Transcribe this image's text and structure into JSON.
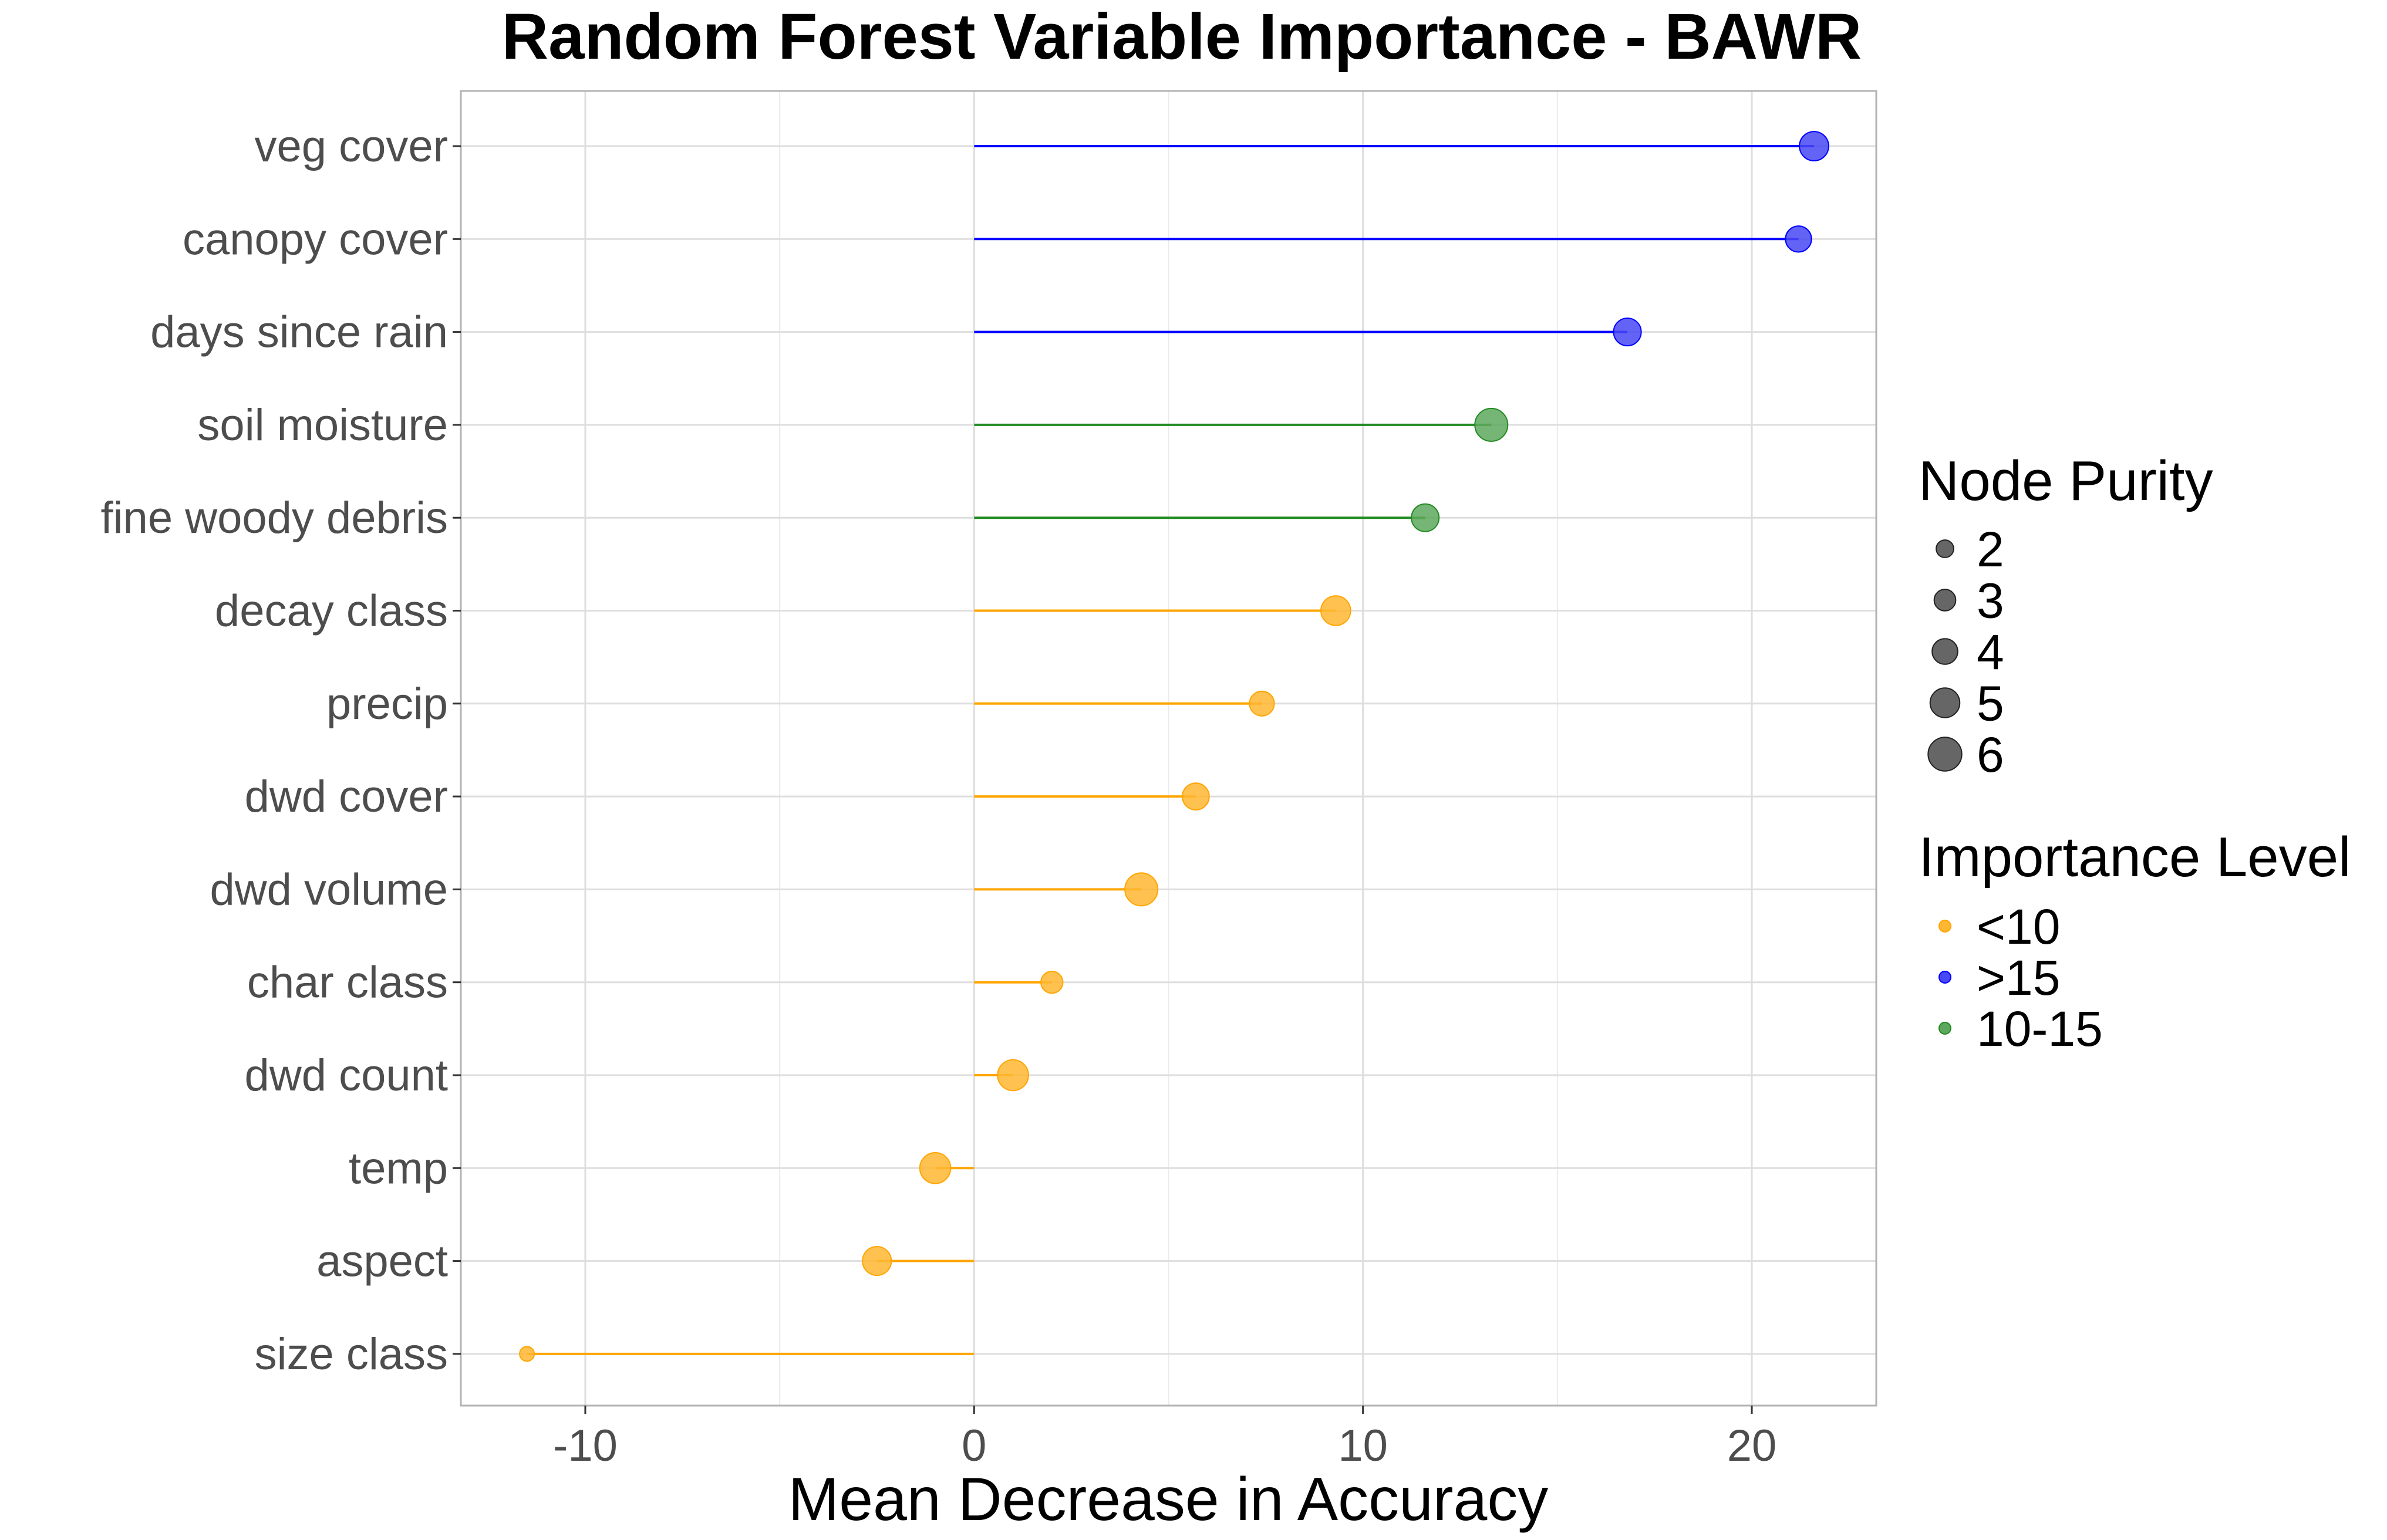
{
  "chart_data": {
    "type": "lollipop",
    "title": "Random Forest Variable Importance - BAWR",
    "xlabel": "Mean Decrease in Accuracy",
    "ylabel": "",
    "xlim": [
      -13.2,
      23.2
    ],
    "xticks": [
      -10,
      0,
      10,
      20
    ],
    "x_tick_labels": [
      "-10",
      "0",
      "10",
      "20"
    ],
    "grid": true,
    "legend_position": "right",
    "categories": [
      "veg cover",
      "canopy cover",
      "days since rain",
      "soil moisture",
      "fine woody debris",
      "decay class",
      "precip",
      "dwd cover",
      "dwd volume",
      "char class",
      "dwd count",
      "temp",
      "aspect",
      "size class"
    ],
    "values": [
      21.6,
      21.2,
      16.8,
      13.3,
      11.6,
      9.3,
      7.4,
      5.7,
      4.3,
      2.0,
      1.0,
      -1.0,
      -2.5,
      -11.5
    ],
    "node_purity": [
      4.9,
      4.1,
      4.5,
      5.8,
      4.5,
      5.0,
      3.8,
      4.3,
      5.8,
      3.1,
      5.3,
      5.3,
      4.8,
      1.3
    ],
    "importance_level": [
      ">15",
      ">15",
      ">15",
      "10-15",
      "10-15",
      "<10",
      "<10",
      "<10",
      "<10",
      "<10",
      "<10",
      "<10",
      "<10",
      "<10"
    ],
    "level_colors": {
      "<10": "#FFA500",
      ">15": "#0000FF",
      "10-15": "#228B22"
    },
    "point_colors": {
      "<10": "#FFB733",
      ">15": "#4848F5",
      "10-15": "#5DA85D"
    },
    "legend": {
      "size_title": "Node Purity",
      "size_entries": [
        {
          "label": "2",
          "value": 2
        },
        {
          "label": "3",
          "value": 3
        },
        {
          "label": "4",
          "value": 4
        },
        {
          "label": "5",
          "value": 5
        },
        {
          "label": "6",
          "value": 6
        }
      ],
      "color_title": "Importance Level",
      "color_entries": [
        {
          "label": "<10",
          "level": "<10"
        },
        {
          "label": ">15",
          "level": ">15"
        },
        {
          "label": "10-15",
          "level": "10-15"
        }
      ]
    }
  }
}
